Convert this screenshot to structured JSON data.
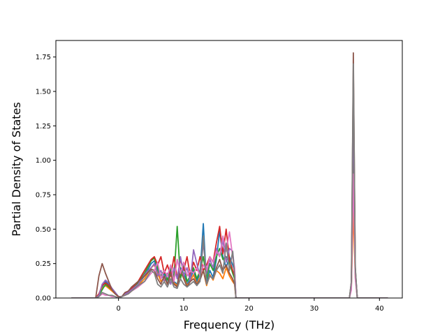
{
  "chart_data": {
    "type": "line",
    "title": "",
    "xlabel": "Frequency (THz)",
    "ylabel": "Partial Density of States",
    "xlim": [
      -9.6,
      43.5
    ],
    "ylim": [
      0,
      1.87
    ],
    "xticks": [
      0,
      10,
      20,
      30,
      40
    ],
    "xtick_labels": [
      "0",
      "10",
      "20",
      "30",
      "40"
    ],
    "yticks": [
      0.0,
      0.25,
      0.5,
      0.75,
      1.0,
      1.25,
      1.5,
      1.75
    ],
    "ytick_labels": [
      "0.00",
      "0.25",
      "0.50",
      "0.75",
      "1.00",
      "1.25",
      "1.50",
      "1.75"
    ],
    "grid": false,
    "legend": "none",
    "series": [
      {
        "color": "#1f77b4",
        "x": [
          -7.2,
          -3.5,
          -3,
          -2.5,
          -2,
          -1.5,
          -1,
          -0.5,
          0,
          0.5,
          1,
          1.5,
          2,
          3,
          4,
          5,
          5.5,
          6,
          6.5,
          7,
          7.5,
          8,
          8.5,
          9,
          9.5,
          10,
          10.5,
          11,
          11.5,
          12,
          12.5,
          13,
          13.5,
          14,
          14.5,
          15,
          15.5,
          16,
          16.5,
          17,
          17.5,
          17.8,
          18,
          35.4,
          35.7,
          36,
          36.3,
          36.6,
          41.3
        ],
        "y": [
          0,
          0,
          0.02,
          0.08,
          0.12,
          0.1,
          0.07,
          0.04,
          0.01,
          0.01,
          0.03,
          0.04,
          0.06,
          0.1,
          0.16,
          0.25,
          0.27,
          0.2,
          0.14,
          0.18,
          0.1,
          0.2,
          0.12,
          0.1,
          0.22,
          0.18,
          0.1,
          0.14,
          0.2,
          0.12,
          0.18,
          0.54,
          0.1,
          0.2,
          0.15,
          0.28,
          0.49,
          0.3,
          0.22,
          0.3,
          0.24,
          0.2,
          0,
          0,
          0.1,
          1.1,
          0.2,
          0,
          0
        ]
      },
      {
        "color": "#ff7f0e",
        "x": [
          -7.2,
          -3.5,
          -3,
          -2.5,
          -2,
          -1.5,
          -1,
          -0.5,
          0,
          0.5,
          1,
          1.5,
          2,
          3,
          4,
          5,
          5.5,
          6,
          6.5,
          7,
          7.5,
          8,
          8.5,
          9,
          9.5,
          10,
          10.5,
          11,
          11.5,
          12,
          12.5,
          13,
          13.5,
          14,
          14.5,
          15,
          15.5,
          16,
          16.5,
          17,
          17.5,
          17.8,
          18,
          35.4,
          35.7,
          36,
          36.3,
          36.6,
          41.3
        ],
        "y": [
          0,
          0,
          0.03,
          0.07,
          0.09,
          0.07,
          0.05,
          0.03,
          0.01,
          0.01,
          0.02,
          0.03,
          0.05,
          0.09,
          0.14,
          0.22,
          0.24,
          0.18,
          0.12,
          0.15,
          0.1,
          0.17,
          0.11,
          0.09,
          0.2,
          0.15,
          0.09,
          0.12,
          0.17,
          0.1,
          0.15,
          0.2,
          0.09,
          0.17,
          0.13,
          0.2,
          0.18,
          0.14,
          0.22,
          0.16,
          0.12,
          0.1,
          0,
          0,
          0.08,
          0.64,
          0.15,
          0,
          0
        ]
      },
      {
        "color": "#2ca02c",
        "x": [
          -7.2,
          -3.5,
          -3,
          -2.5,
          -2,
          -1.5,
          -1,
          -0.5,
          0,
          0.5,
          1,
          1.5,
          2,
          3,
          4,
          5,
          5.5,
          6,
          6.5,
          7,
          7.5,
          8,
          8.5,
          9,
          9.5,
          10,
          10.5,
          11,
          11.5,
          12,
          12.5,
          13,
          13.5,
          14,
          14.5,
          15,
          15.5,
          16,
          16.5,
          17,
          17.5,
          17.8,
          18,
          35.4,
          35.7,
          36,
          36.3,
          36.6,
          41.3
        ],
        "y": [
          0,
          0,
          0.02,
          0.06,
          0.1,
          0.08,
          0.06,
          0.03,
          0.01,
          0.01,
          0.03,
          0.04,
          0.06,
          0.11,
          0.18,
          0.27,
          0.29,
          0.22,
          0.16,
          0.2,
          0.13,
          0.22,
          0.15,
          0.52,
          0.14,
          0.24,
          0.12,
          0.16,
          0.22,
          0.14,
          0.2,
          0.3,
          0.14,
          0.25,
          0.2,
          0.3,
          0.36,
          0.28,
          0.3,
          0.26,
          0.18,
          0.14,
          0,
          0,
          0.09,
          1.2,
          0.18,
          0,
          0
        ]
      },
      {
        "color": "#d62728",
        "x": [
          -7.2,
          -3.5,
          -3,
          -2.5,
          -2,
          -1.5,
          -1,
          -0.5,
          0,
          0.5,
          1,
          1.5,
          2,
          3,
          4,
          5,
          5.5,
          6,
          6.5,
          7,
          7.5,
          8,
          8.5,
          9,
          9.5,
          10,
          10.5,
          11,
          11.5,
          12,
          12.5,
          13,
          13.5,
          14,
          14.5,
          15,
          15.5,
          16,
          16.5,
          17,
          17.5,
          17.8,
          18,
          35.4,
          35.7,
          36,
          36.3,
          36.6,
          41.3
        ],
        "y": [
          0,
          0,
          0.03,
          0.09,
          0.11,
          0.09,
          0.06,
          0.03,
          0.01,
          0.01,
          0.03,
          0.05,
          0.07,
          0.12,
          0.2,
          0.28,
          0.3,
          0.24,
          0.3,
          0.18,
          0.24,
          0.16,
          0.3,
          0.14,
          0.28,
          0.2,
          0.3,
          0.16,
          0.26,
          0.2,
          0.3,
          0.2,
          0.24,
          0.3,
          0.26,
          0.4,
          0.52,
          0.32,
          0.5,
          0.28,
          0.2,
          0.16,
          0,
          0,
          0.1,
          1.5,
          0.2,
          0,
          0
        ]
      },
      {
        "color": "#9467bd",
        "x": [
          -7.2,
          -3.5,
          -3,
          -2.5,
          -2,
          -1.5,
          -1,
          -0.5,
          0,
          0.5,
          1,
          1.5,
          2,
          3,
          4,
          5,
          5.5,
          6,
          6.5,
          7,
          7.5,
          8,
          8.5,
          9,
          9.5,
          10,
          10.5,
          11,
          11.5,
          12,
          12.5,
          13,
          13.5,
          14,
          14.5,
          15,
          15.5,
          16,
          16.5,
          17,
          17.5,
          17.8,
          18,
          35.4,
          35.7,
          36,
          36.3,
          36.6,
          41.3
        ],
        "y": [
          0,
          0,
          0.02,
          0.1,
          0.13,
          0.11,
          0.07,
          0.04,
          0.01,
          0.01,
          0.03,
          0.04,
          0.06,
          0.1,
          0.17,
          0.22,
          0.25,
          0.16,
          0.2,
          0.12,
          0.18,
          0.1,
          0.22,
          0.14,
          0.3,
          0.16,
          0.22,
          0.12,
          0.35,
          0.25,
          0.16,
          0.4,
          0.18,
          0.28,
          0.22,
          0.36,
          0.3,
          0.42,
          0.26,
          0.36,
          0.34,
          0.2,
          0,
          0,
          0.1,
          1.4,
          0.19,
          0,
          0
        ]
      },
      {
        "color": "#8c564b",
        "x": [
          -7.2,
          -3.5,
          -3,
          -2.5,
          -2,
          -1.5,
          -1,
          -0.5,
          0,
          0.5,
          1,
          1.5,
          2,
          3,
          4,
          5,
          5.5,
          6,
          6.5,
          7,
          7.5,
          8,
          8.5,
          9,
          9.5,
          10,
          10.5,
          11,
          11.5,
          12,
          12.5,
          13,
          13.5,
          14,
          14.5,
          15,
          15.5,
          16,
          16.5,
          17,
          17.5,
          17.8,
          18,
          35.4,
          35.7,
          36,
          36.3,
          36.6,
          41.3
        ],
        "y": [
          0,
          0,
          0.16,
          0.25,
          0.18,
          0.12,
          0.06,
          0.03,
          0.01,
          0.01,
          0.04,
          0.05,
          0.08,
          0.12,
          0.16,
          0.21,
          0.2,
          0.14,
          0.1,
          0.16,
          0.1,
          0.18,
          0.1,
          0.08,
          0.2,
          0.14,
          0.08,
          0.12,
          0.14,
          0.1,
          0.13,
          0.2,
          0.1,
          0.16,
          0.14,
          0.22,
          0.28,
          0.2,
          0.24,
          0.18,
          0.14,
          0.1,
          0,
          0,
          0.12,
          1.78,
          0.22,
          0,
          0
        ]
      },
      {
        "color": "#e377c2",
        "x": [
          -7.2,
          -3.5,
          -3,
          -2.5,
          -2,
          -1.5,
          -1,
          -0.5,
          0,
          0.5,
          1,
          1.5,
          2,
          3,
          4,
          5,
          5.5,
          6,
          6.5,
          7,
          7.5,
          8,
          8.5,
          9,
          9.5,
          10,
          10.5,
          11,
          11.5,
          12,
          12.5,
          13,
          13.5,
          14,
          14.5,
          15,
          15.5,
          16,
          16.5,
          17,
          17.5,
          17.8,
          18,
          35.4,
          35.7,
          36,
          36.3,
          36.6,
          41.3
        ],
        "y": [
          0,
          0,
          0.01,
          0.03,
          0.02,
          0.02,
          0.01,
          0.01,
          0.0,
          0.01,
          0.02,
          0.03,
          0.05,
          0.08,
          0.12,
          0.18,
          0.2,
          0.26,
          0.14,
          0.2,
          0.16,
          0.24,
          0.12,
          0.28,
          0.18,
          0.26,
          0.16,
          0.2,
          0.18,
          0.22,
          0.16,
          0.24,
          0.2,
          0.3,
          0.26,
          0.34,
          0.3,
          0.45,
          0.34,
          0.48,
          0.3,
          0.22,
          0,
          0,
          0.06,
          0.9,
          0.14,
          0,
          0
        ]
      },
      {
        "color": "#7f7f7f",
        "x": [
          -7.2,
          -3.5,
          -3,
          -2.5,
          -2,
          -1.5,
          -1,
          -0.5,
          0,
          0.5,
          1,
          1.5,
          2,
          3,
          4,
          5,
          5.5,
          6,
          6.5,
          7,
          7.5,
          8,
          8.5,
          9,
          9.5,
          10,
          10.5,
          11,
          11.5,
          12,
          12.5,
          13,
          13.5,
          14,
          14.5,
          15,
          15.5,
          16,
          16.5,
          17,
          17.5,
          17.8,
          18,
          35.4,
          35.7,
          36,
          36.3,
          36.6,
          41.3
        ],
        "y": [
          0,
          0,
          0.01,
          0.04,
          0.03,
          0.02,
          0.02,
          0.01,
          0.0,
          0.01,
          0.02,
          0.03,
          0.05,
          0.09,
          0.12,
          0.2,
          0.18,
          0.1,
          0.08,
          0.12,
          0.08,
          0.14,
          0.08,
          0.07,
          0.14,
          0.1,
          0.08,
          0.1,
          0.12,
          0.09,
          0.12,
          0.45,
          0.1,
          0.16,
          0.14,
          0.2,
          0.24,
          0.18,
          0.4,
          0.2,
          0.34,
          0.16,
          0,
          0,
          0.12,
          1.7,
          0.22,
          0,
          0
        ]
      }
    ]
  }
}
